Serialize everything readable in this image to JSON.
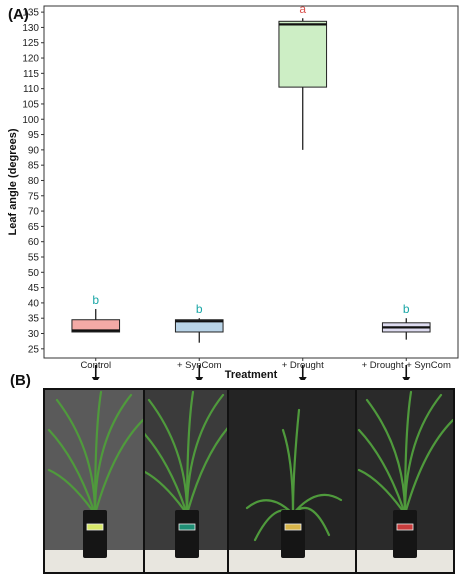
{
  "panels": {
    "a_label": "(A)",
    "b_label": "(B)"
  },
  "chart_data": {
    "type": "box",
    "ylabel": "Leaf angle (degrees)",
    "xlabel": "Treatment",
    "ylim": [
      22,
      137
    ],
    "yticks": [
      25,
      30,
      35,
      40,
      45,
      50,
      55,
      60,
      65,
      70,
      75,
      80,
      85,
      90,
      95,
      100,
      105,
      110,
      115,
      120,
      125,
      130,
      135
    ],
    "grid": false,
    "categories": [
      "Control",
      "+ SynCom",
      "+ Drought",
      "+ Drought + SynCom"
    ],
    "boxes": [
      {
        "category": "Control",
        "min": 30.5,
        "q1": 30.5,
        "median": 31,
        "q3": 34.5,
        "max": 38,
        "letter": "b",
        "fill": "#f4aaa6"
      },
      {
        "category": "+ SynCom",
        "min": 27,
        "q1": 30.5,
        "median": 34,
        "q3": 34.5,
        "max": 35,
        "letter": "b",
        "fill": "#b9d4e8"
      },
      {
        "category": "+ Drought",
        "min": 90,
        "q1": 110.5,
        "median": 131,
        "q3": 132,
        "max": 133,
        "letter": "a",
        "fill": "#cdeec5"
      },
      {
        "category": "+ Drought + SynCom",
        "min": 28,
        "q1": 30.5,
        "median": 32,
        "q3": 33.5,
        "max": 35,
        "letter": "b",
        "fill": "#dedcf0"
      }
    ],
    "letter_colors": {
      "a": "#d9534f",
      "b": "#1aa6a6"
    }
  },
  "photos": [
    {
      "name": "Control",
      "bg": "#5a5a5a",
      "label_color": "#d9e96a"
    },
    {
      "name": "+ SynCom",
      "bg": "#3b3b3b",
      "label_color": "#1f8f75"
    },
    {
      "name": "+ Drought",
      "bg": "#242424",
      "label_color": "#d8b54a"
    },
    {
      "name": "+ Drought + SynCom",
      "bg": "#2a2a2a",
      "label_color": "#c83c3c"
    }
  ]
}
